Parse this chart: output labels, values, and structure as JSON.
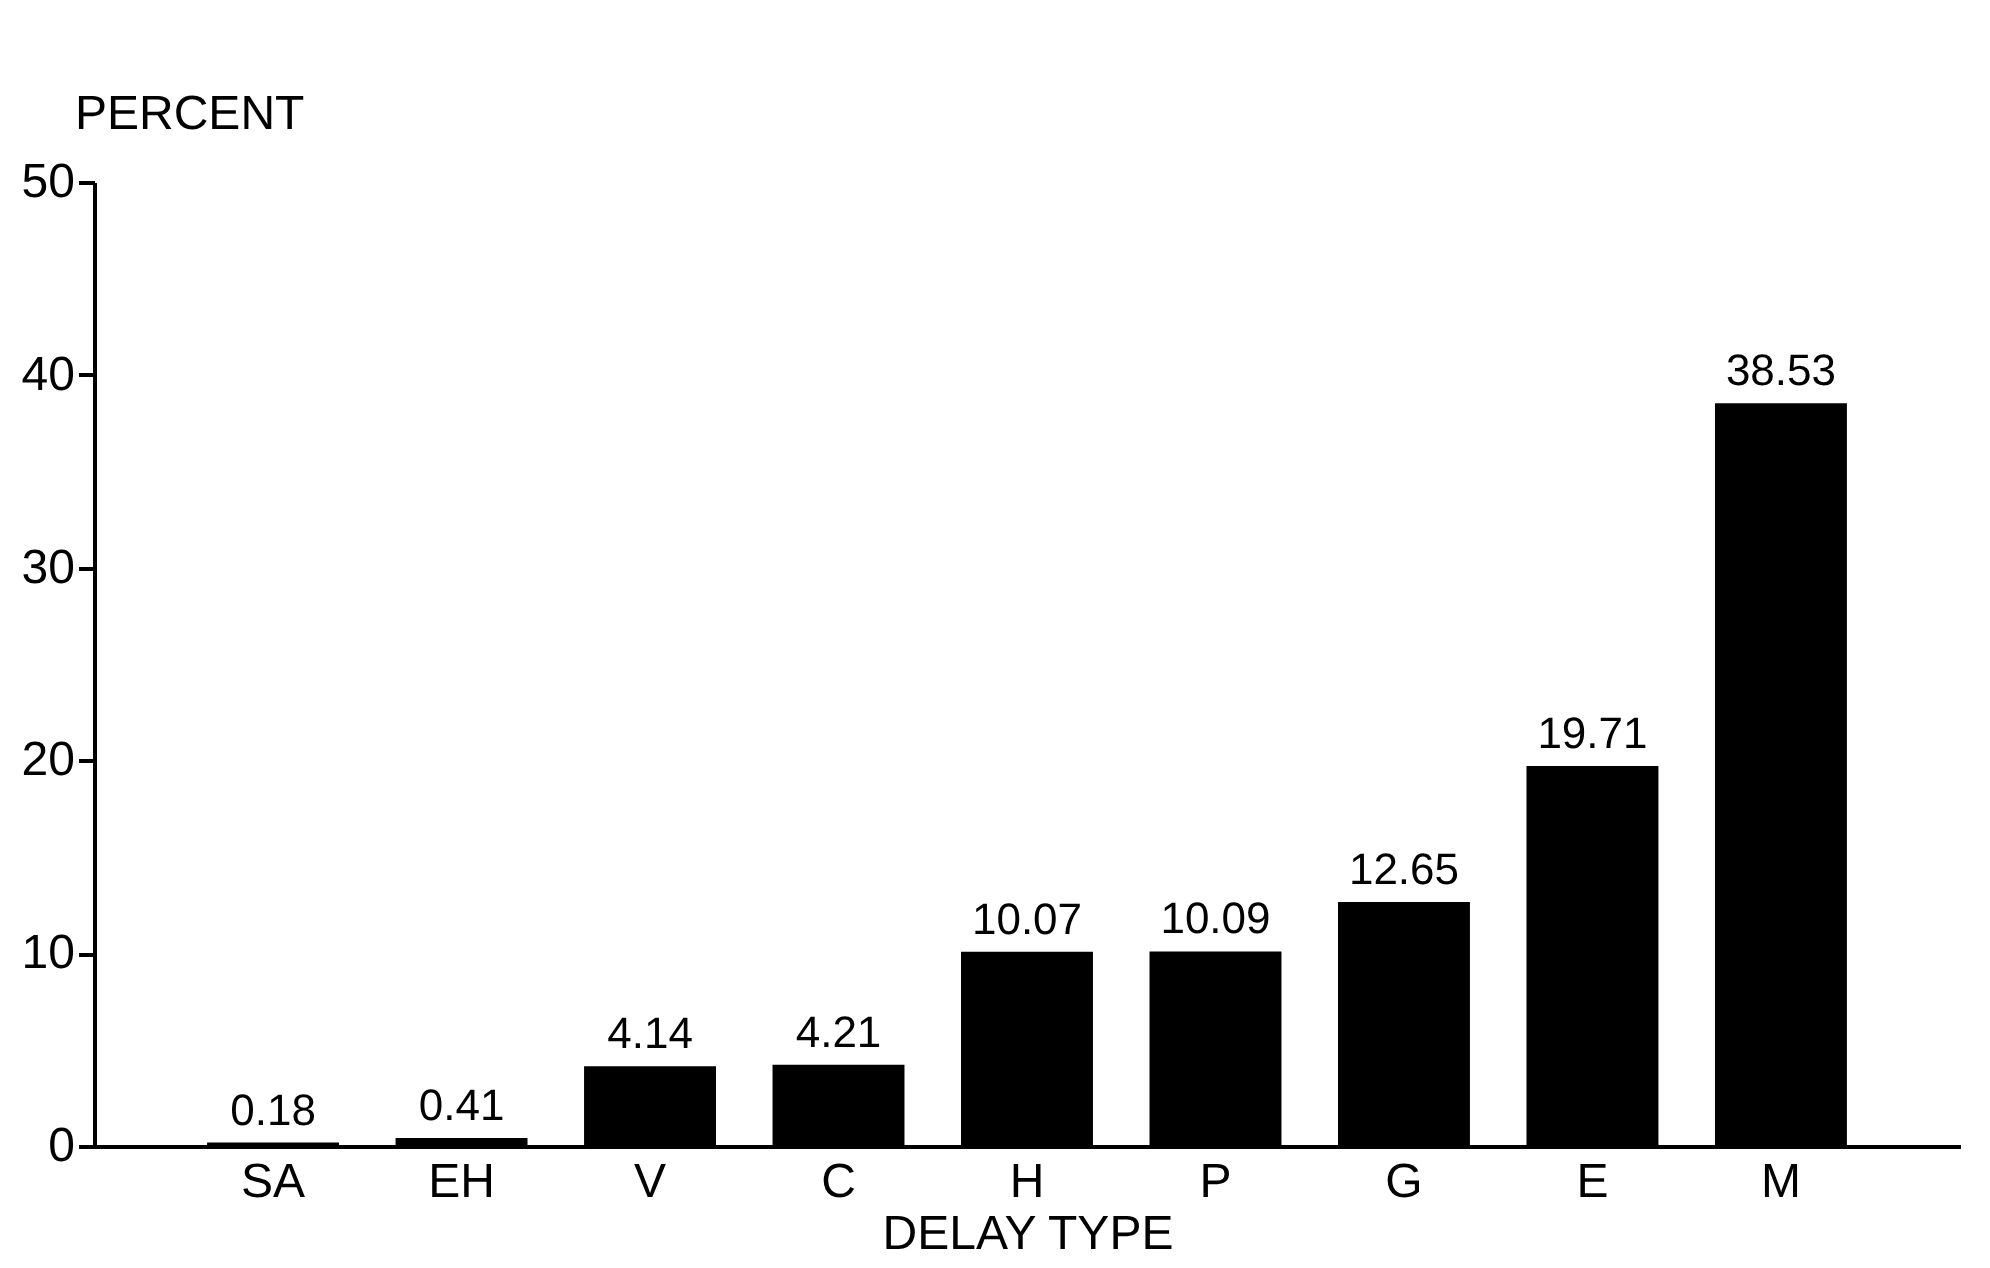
{
  "chart_data": {
    "type": "bar",
    "xlabel": "DELAY TYPE",
    "ylabel": "PERCENT",
    "categories": [
      "SA",
      "EH",
      "V",
      "C",
      "H",
      "P",
      "G",
      "E",
      "M"
    ],
    "values": [
      0.18,
      0.41,
      4.14,
      4.21,
      10.07,
      10.09,
      12.65,
      19.71,
      38.53
    ],
    "color": "#000000",
    "data_labels": true,
    "ylim": [
      0,
      50
    ],
    "yticks": [
      0,
      10,
      20,
      30,
      40,
      50
    ],
    "grid": false
  }
}
